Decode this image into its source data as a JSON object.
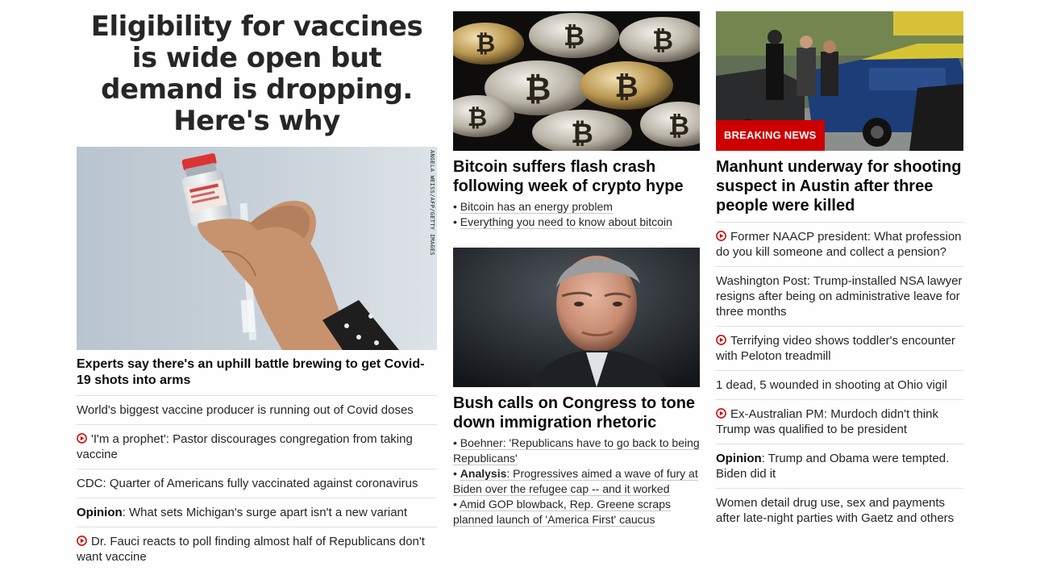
{
  "left": {
    "headline": "Eligibility for vaccines is wide open but demand is dropping. Here's why",
    "image_credit": "ANGELA WEISS/AFP/GETTY IMAGES",
    "subheadline": "Experts say there's an uphill battle brewing to get Covid-19 shots into arms",
    "items": [
      {
        "text": "World's biggest vaccine producer is running out of Covid doses",
        "video": false,
        "prefix": ""
      },
      {
        "text": "'I'm a prophet': Pastor discourages congregation from taking vaccine",
        "video": true,
        "prefix": ""
      },
      {
        "text": "CDC: Quarter of Americans fully vaccinated against coronavirus",
        "video": false,
        "prefix": ""
      },
      {
        "text": ": What sets Michigan's surge apart isn't a new variant",
        "video": false,
        "prefix": "Opinion"
      },
      {
        "text": "Dr. Fauci reacts to poll finding almost half of Republicans don't want vaccine",
        "video": true,
        "prefix": ""
      }
    ]
  },
  "middle": {
    "story1": {
      "headline": "Bitcoin suffers flash crash following week of crypto hype",
      "bullets": [
        {
          "prefix": "",
          "text": "Bitcoin has an energy problem"
        },
        {
          "prefix": "",
          "text": "Everything you need to know about bitcoin"
        }
      ]
    },
    "story2": {
      "headline": "Bush calls on Congress to tone down immigration rhetoric",
      "bullets": [
        {
          "prefix": "",
          "text": "Boehner: 'Republicans have to go back to being Republicans'"
        },
        {
          "prefix": "Analysis",
          "text": ": Progressives aimed a wave of fury at Biden over the refugee cap -- and it worked"
        },
        {
          "prefix": "",
          "text": "Amid GOP blowback, Rep. Greene scraps planned launch of 'America First' caucus"
        }
      ]
    }
  },
  "right": {
    "badge": "BREAKING NEWS",
    "headline": "Manhunt underway for shooting suspect in Austin after three people were killed",
    "items": [
      {
        "text": "Former NAACP president: What profession do you kill someone and collect a pension?",
        "video": true,
        "prefix": ""
      },
      {
        "text": "Washington Post: Trump-installed NSA lawyer resigns after being on administrative leave for three months",
        "video": false,
        "prefix": ""
      },
      {
        "text": "Terrifying video shows toddler's encounter with Peloton treadmill",
        "video": true,
        "prefix": ""
      },
      {
        "text": "1 dead, 5 wounded in shooting at Ohio vigil",
        "video": false,
        "prefix": ""
      },
      {
        "text": "Ex-Australian PM: Murdoch didn't think Trump was qualified to be president",
        "video": true,
        "prefix": ""
      },
      {
        "text": ": Trump and Obama were tempted. Biden did it",
        "video": false,
        "prefix": "Opinion"
      },
      {
        "text": "Women detail drug use, sex and payments after late-night parties with Gaetz and others",
        "video": false,
        "prefix": ""
      }
    ]
  },
  "colors": {
    "accent": "#cc0000",
    "divider": "#e1e1e1",
    "text": "#0c0c0c"
  }
}
